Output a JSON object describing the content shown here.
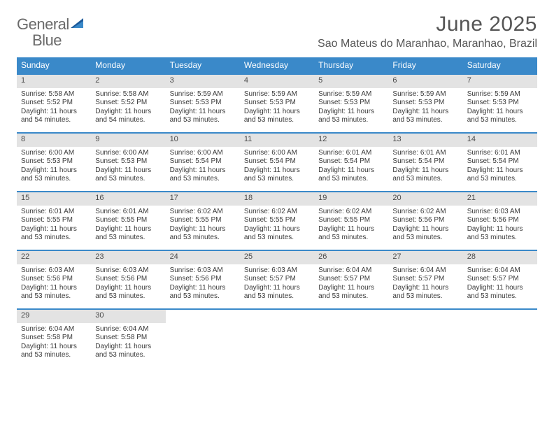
{
  "brand": {
    "part1": "General",
    "part2": "Blue"
  },
  "title": {
    "month": "June 2025",
    "location": "Sao Mateus do Maranhao, Maranhao, Brazil"
  },
  "colors": {
    "header_bg": "#3a89c9",
    "header_text": "#ffffff",
    "rule": "#3a89c9",
    "daynum_bg": "#e3e3e3",
    "body_text": "#3a3a3a",
    "title_text": "#555555",
    "brand_gray": "#6a6a6a",
    "brand_blue": "#2f79b9",
    "page_bg": "#ffffff"
  },
  "day_labels": [
    "Sunday",
    "Monday",
    "Tuesday",
    "Wednesday",
    "Thursday",
    "Friday",
    "Saturday"
  ],
  "weeks": [
    [
      {
        "n": "1",
        "sr": "Sunrise: 5:58 AM",
        "ss": "Sunset: 5:52 PM",
        "dl": "Daylight: 11 hours and 54 minutes."
      },
      {
        "n": "2",
        "sr": "Sunrise: 5:58 AM",
        "ss": "Sunset: 5:52 PM",
        "dl": "Daylight: 11 hours and 54 minutes."
      },
      {
        "n": "3",
        "sr": "Sunrise: 5:59 AM",
        "ss": "Sunset: 5:53 PM",
        "dl": "Daylight: 11 hours and 53 minutes."
      },
      {
        "n": "4",
        "sr": "Sunrise: 5:59 AM",
        "ss": "Sunset: 5:53 PM",
        "dl": "Daylight: 11 hours and 53 minutes."
      },
      {
        "n": "5",
        "sr": "Sunrise: 5:59 AM",
        "ss": "Sunset: 5:53 PM",
        "dl": "Daylight: 11 hours and 53 minutes."
      },
      {
        "n": "6",
        "sr": "Sunrise: 5:59 AM",
        "ss": "Sunset: 5:53 PM",
        "dl": "Daylight: 11 hours and 53 minutes."
      },
      {
        "n": "7",
        "sr": "Sunrise: 5:59 AM",
        "ss": "Sunset: 5:53 PM",
        "dl": "Daylight: 11 hours and 53 minutes."
      }
    ],
    [
      {
        "n": "8",
        "sr": "Sunrise: 6:00 AM",
        "ss": "Sunset: 5:53 PM",
        "dl": "Daylight: 11 hours and 53 minutes."
      },
      {
        "n": "9",
        "sr": "Sunrise: 6:00 AM",
        "ss": "Sunset: 5:53 PM",
        "dl": "Daylight: 11 hours and 53 minutes."
      },
      {
        "n": "10",
        "sr": "Sunrise: 6:00 AM",
        "ss": "Sunset: 5:54 PM",
        "dl": "Daylight: 11 hours and 53 minutes."
      },
      {
        "n": "11",
        "sr": "Sunrise: 6:00 AM",
        "ss": "Sunset: 5:54 PM",
        "dl": "Daylight: 11 hours and 53 minutes."
      },
      {
        "n": "12",
        "sr": "Sunrise: 6:01 AM",
        "ss": "Sunset: 5:54 PM",
        "dl": "Daylight: 11 hours and 53 minutes."
      },
      {
        "n": "13",
        "sr": "Sunrise: 6:01 AM",
        "ss": "Sunset: 5:54 PM",
        "dl": "Daylight: 11 hours and 53 minutes."
      },
      {
        "n": "14",
        "sr": "Sunrise: 6:01 AM",
        "ss": "Sunset: 5:54 PM",
        "dl": "Daylight: 11 hours and 53 minutes."
      }
    ],
    [
      {
        "n": "15",
        "sr": "Sunrise: 6:01 AM",
        "ss": "Sunset: 5:55 PM",
        "dl": "Daylight: 11 hours and 53 minutes."
      },
      {
        "n": "16",
        "sr": "Sunrise: 6:01 AM",
        "ss": "Sunset: 5:55 PM",
        "dl": "Daylight: 11 hours and 53 minutes."
      },
      {
        "n": "17",
        "sr": "Sunrise: 6:02 AM",
        "ss": "Sunset: 5:55 PM",
        "dl": "Daylight: 11 hours and 53 minutes."
      },
      {
        "n": "18",
        "sr": "Sunrise: 6:02 AM",
        "ss": "Sunset: 5:55 PM",
        "dl": "Daylight: 11 hours and 53 minutes."
      },
      {
        "n": "19",
        "sr": "Sunrise: 6:02 AM",
        "ss": "Sunset: 5:55 PM",
        "dl": "Daylight: 11 hours and 53 minutes."
      },
      {
        "n": "20",
        "sr": "Sunrise: 6:02 AM",
        "ss": "Sunset: 5:56 PM",
        "dl": "Daylight: 11 hours and 53 minutes."
      },
      {
        "n": "21",
        "sr": "Sunrise: 6:03 AM",
        "ss": "Sunset: 5:56 PM",
        "dl": "Daylight: 11 hours and 53 minutes."
      }
    ],
    [
      {
        "n": "22",
        "sr": "Sunrise: 6:03 AM",
        "ss": "Sunset: 5:56 PM",
        "dl": "Daylight: 11 hours and 53 minutes."
      },
      {
        "n": "23",
        "sr": "Sunrise: 6:03 AM",
        "ss": "Sunset: 5:56 PM",
        "dl": "Daylight: 11 hours and 53 minutes."
      },
      {
        "n": "24",
        "sr": "Sunrise: 6:03 AM",
        "ss": "Sunset: 5:56 PM",
        "dl": "Daylight: 11 hours and 53 minutes."
      },
      {
        "n": "25",
        "sr": "Sunrise: 6:03 AM",
        "ss": "Sunset: 5:57 PM",
        "dl": "Daylight: 11 hours and 53 minutes."
      },
      {
        "n": "26",
        "sr": "Sunrise: 6:04 AM",
        "ss": "Sunset: 5:57 PM",
        "dl": "Daylight: 11 hours and 53 minutes."
      },
      {
        "n": "27",
        "sr": "Sunrise: 6:04 AM",
        "ss": "Sunset: 5:57 PM",
        "dl": "Daylight: 11 hours and 53 minutes."
      },
      {
        "n": "28",
        "sr": "Sunrise: 6:04 AM",
        "ss": "Sunset: 5:57 PM",
        "dl": "Daylight: 11 hours and 53 minutes."
      }
    ],
    [
      {
        "n": "29",
        "sr": "Sunrise: 6:04 AM",
        "ss": "Sunset: 5:58 PM",
        "dl": "Daylight: 11 hours and 53 minutes."
      },
      {
        "n": "30",
        "sr": "Sunrise: 6:04 AM",
        "ss": "Sunset: 5:58 PM",
        "dl": "Daylight: 11 hours and 53 minutes."
      },
      null,
      null,
      null,
      null,
      null
    ]
  ]
}
